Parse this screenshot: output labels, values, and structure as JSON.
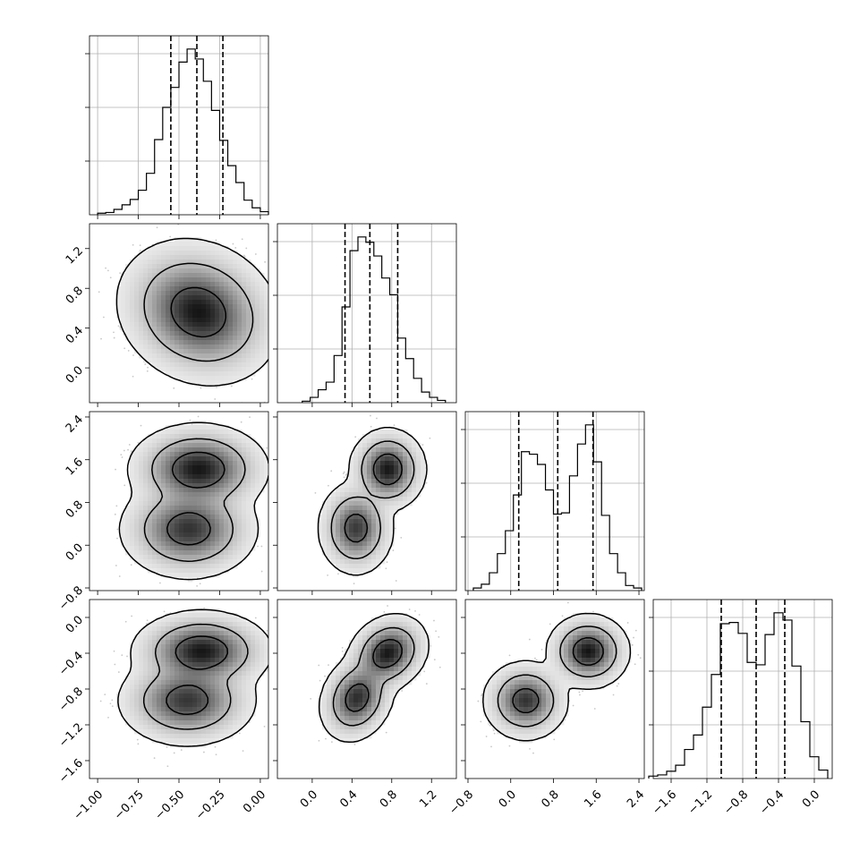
{
  "chart_data": {
    "type": "corner",
    "parameters": [
      {
        "range": [
          -1.05,
          0.05
        ],
        "ticks": [
          -1.0,
          -0.75,
          -0.5,
          -0.25,
          0.0
        ],
        "tick_labels": [
          "−1.00",
          "−0.75",
          "−0.50",
          "−0.25",
          "0.00"
        ],
        "quantiles": [
          -0.55,
          -0.39,
          -0.23
        ]
      },
      {
        "range": [
          -0.35,
          1.45
        ],
        "ticks": [
          0.0,
          0.4,
          0.8,
          1.2
        ],
        "tick_labels": [
          "0.0",
          "0.4",
          "0.8",
          "1.2"
        ],
        "quantiles": [
          0.33,
          0.58,
          0.86
        ]
      },
      {
        "range": [
          -0.85,
          2.5
        ],
        "ticks": [
          -0.8,
          0.0,
          0.8,
          1.6,
          2.4
        ],
        "tick_labels": [
          "−0.8",
          "0.0",
          "0.8",
          "1.6",
          "2.4"
        ],
        "quantiles": [
          0.15,
          0.88,
          1.54
        ]
      },
      {
        "range": [
          -1.8,
          0.2
        ],
        "ticks": [
          -1.6,
          -1.2,
          -0.8,
          -0.4,
          0.0
        ],
        "tick_labels": [
          "−1.6",
          "−1.2",
          "−0.8",
          "−0.4",
          "0.0"
        ],
        "quantiles": [
          -1.04,
          -0.65,
          -0.33
        ]
      }
    ],
    "x_axis_tick_labels": [
      [
        "−1.00",
        "−0.75",
        "−0.50",
        "−0.25",
        "0.00"
      ],
      [
        "0.0",
        "0.4",
        "0.8",
        "1.2"
      ],
      [
        "−0.8",
        "0.0",
        "0.8",
        "1.6",
        "2.4"
      ],
      [
        "−1.6",
        "−1.2",
        "−0.8",
        "−0.4",
        "0.0"
      ]
    ],
    "y_axis_tick_labels": [
      [
        "0.0",
        "0.4",
        "0.8",
        "1.2"
      ],
      [
        "−0.8",
        "0.0",
        "0.8",
        "1.6",
        "2.4"
      ],
      [
        "−1.6",
        "−1.2",
        "−0.8",
        "−0.4",
        "0.0"
      ]
    ],
    "histograms": [
      {
        "param": 0,
        "edges": [
          -1.0,
          -0.95,
          -0.9,
          -0.85,
          -0.8,
          -0.75,
          -0.7,
          -0.65,
          -0.6,
          -0.55,
          -0.5,
          -0.45,
          -0.4,
          -0.35,
          -0.3,
          -0.25,
          -0.2,
          -0.15,
          -0.1,
          -0.05,
          0.0,
          0.05
        ],
        "counts": [
          2,
          3,
          7,
          13,
          20,
          32,
          54,
          98,
          140,
          166,
          199,
          216,
          203,
          174,
          136,
          97,
          64,
          42,
          19,
          9,
          4
        ]
      },
      {
        "param": 1,
        "edges": [
          -0.1,
          -0.02,
          0.06,
          0.14,
          0.22,
          0.3,
          0.38,
          0.46,
          0.54,
          0.62,
          0.7,
          0.78,
          0.86,
          0.94,
          1.02,
          1.1,
          1.18,
          1.26,
          1.34
        ],
        "counts": [
          2,
          7,
          17,
          27,
          62,
          126,
          200,
          218,
          211,
          193,
          164,
          142,
          85,
          58,
          32,
          14,
          7,
          3
        ]
      },
      {
        "param": 2,
        "edges": [
          -0.7,
          -0.55,
          -0.4,
          -0.25,
          -0.1,
          0.05,
          0.2,
          0.35,
          0.5,
          0.65,
          0.8,
          0.95,
          1.1,
          1.25,
          1.4,
          1.55,
          1.7,
          1.85,
          2.0,
          2.15,
          2.3,
          2.45
        ],
        "counts": [
          2,
          5,
          14,
          29,
          47,
          75,
          109,
          107,
          99,
          79,
          60,
          61,
          90,
          115,
          130,
          101,
          59,
          29,
          14,
          4,
          2
        ]
      },
      {
        "param": 3,
        "edges": [
          -1.85,
          -1.75,
          -1.65,
          -1.55,
          -1.45,
          -1.35,
          -1.25,
          -1.15,
          -1.05,
          -0.95,
          -0.85,
          -0.75,
          -0.65,
          -0.55,
          -0.45,
          -0.35,
          -0.25,
          -0.15,
          -0.05,
          0.05,
          0.15
        ],
        "counts": [
          2,
          3,
          6,
          11,
          24,
          36,
          59,
          86,
          128,
          129,
          120,
          96,
          94,
          119,
          137,
          131,
          93,
          47,
          18,
          7
        ]
      }
    ],
    "pair_modes": [
      {
        "x": 0,
        "y": 1,
        "modes": [
          {
            "mx": -0.38,
            "my": 0.56,
            "sx": 0.17,
            "sy": 0.25,
            "rho": -0.15,
            "w": 1.0
          }
        ]
      },
      {
        "x": 0,
        "y": 2,
        "modes": [
          {
            "mx": -0.38,
            "my": 1.42,
            "sx": 0.15,
            "sy": 0.3,
            "rho": 0.0,
            "w": 0.52
          },
          {
            "mx": -0.44,
            "my": 0.3,
            "sx": 0.15,
            "sy": 0.33,
            "rho": 0.0,
            "w": 0.48
          }
        ]
      },
      {
        "x": 0,
        "y": 3,
        "modes": [
          {
            "mx": -0.36,
            "my": -0.38,
            "sx": 0.15,
            "sy": 0.16,
            "rho": 0.0,
            "w": 0.52
          },
          {
            "mx": -0.45,
            "my": -0.93,
            "sx": 0.15,
            "sy": 0.18,
            "rho": 0.0,
            "w": 0.48
          }
        ]
      },
      {
        "x": 1,
        "y": 2,
        "modes": [
          {
            "mx": 0.76,
            "my": 1.42,
            "sx": 0.13,
            "sy": 0.26,
            "rho": 0.0,
            "w": 0.52
          },
          {
            "mx": 0.44,
            "my": 0.32,
            "sx": 0.13,
            "sy": 0.3,
            "rho": 0.0,
            "w": 0.48
          }
        ]
      },
      {
        "x": 1,
        "y": 3,
        "modes": [
          {
            "mx": 0.76,
            "my": -0.4,
            "sx": 0.14,
            "sy": 0.15,
            "rho": 0.2,
            "w": 0.52
          },
          {
            "mx": 0.45,
            "my": -0.9,
            "sx": 0.13,
            "sy": 0.17,
            "rho": 0.2,
            "w": 0.48
          }
        ]
      },
      {
        "x": 2,
        "y": 3,
        "modes": [
          {
            "mx": 1.45,
            "my": -0.38,
            "sx": 0.26,
            "sy": 0.14,
            "rho": 0.0,
            "w": 0.52
          },
          {
            "mx": 0.28,
            "my": -0.93,
            "sx": 0.27,
            "sy": 0.15,
            "rho": 0.0,
            "w": 0.48
          }
        ]
      }
    ],
    "contour_levels": [
      0.39,
      0.86,
      0.99
    ],
    "grid": true,
    "title": "",
    "xlabel": "",
    "ylabel": ""
  }
}
